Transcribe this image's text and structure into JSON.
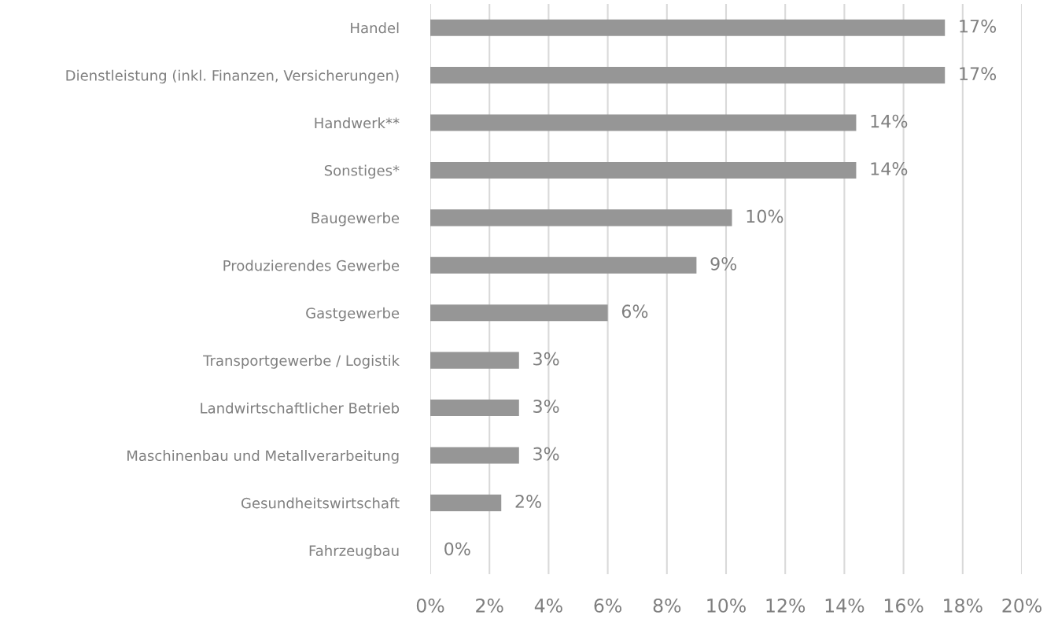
{
  "chart_data": {
    "type": "bar",
    "orientation": "horizontal",
    "categories": [
      "Handel",
      "Dienstleistung (inkl. Finanzen, Versicherungen)",
      "Handwerk**",
      "Sonstiges*",
      "Baugewerbe",
      "Produzierendes Gewerbe",
      "Gastgewerbe",
      "Transportgewerbe / Logistik",
      "Landwirtschaftlicher Betrieb",
      "Maschinenbau und Metallverarbeitung",
      "Gesundheitswirtschaft",
      "Fahrzeugbau"
    ],
    "values": [
      17.4,
      17.4,
      14.4,
      14.4,
      10.2,
      9.0,
      6.0,
      3.0,
      3.0,
      3.0,
      2.4,
      0
    ],
    "value_labels": [
      "17%",
      "17%",
      "14%",
      "14%",
      "10%",
      "9%",
      "6%",
      "3%",
      "3%",
      "3%",
      "2%",
      "0%"
    ],
    "color": "#969696",
    "xlim": [
      0,
      20
    ],
    "xticks": [
      {
        "value": 0,
        "label": "0%"
      },
      {
        "value": 2,
        "label": "2%"
      },
      {
        "value": 4,
        "label": "4%"
      },
      {
        "value": 6,
        "label": "6%"
      },
      {
        "value": 8,
        "label": "8%"
      },
      {
        "value": 10,
        "label": "10%"
      },
      {
        "value": 12,
        "label": "12%"
      },
      {
        "value": 14,
        "label": "14%"
      },
      {
        "value": 16,
        "label": "16%"
      },
      {
        "value": 18,
        "label": "18%"
      },
      {
        "value": 20,
        "label": "20%"
      }
    ],
    "grid": "x"
  }
}
